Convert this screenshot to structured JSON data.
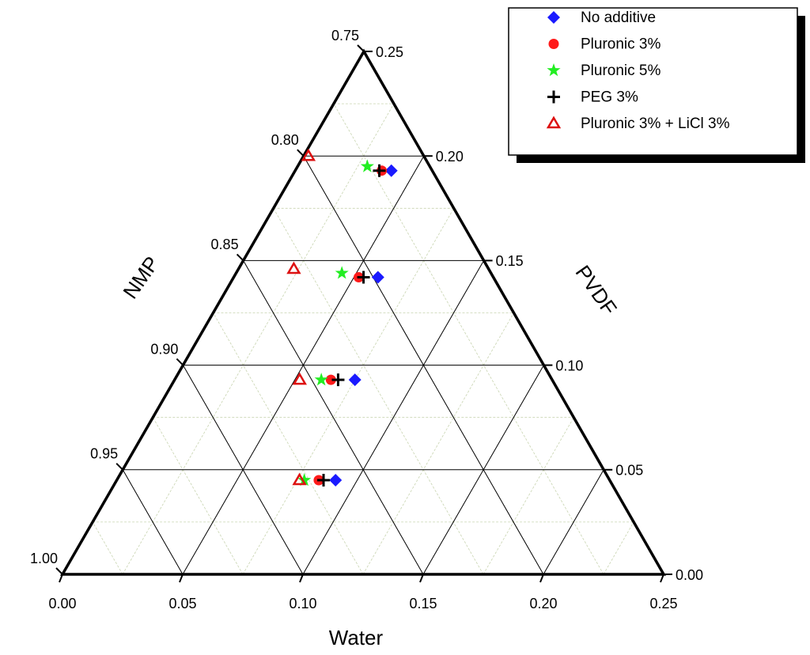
{
  "chart_data": {
    "type": "ternary",
    "axes": {
      "water": {
        "title": "Water",
        "lim": [
          0,
          0.25
        ],
        "ticks": [
          {
            "value": 0,
            "label": "0.00"
          },
          {
            "value": 0.05,
            "label": "0.05"
          },
          {
            "value": 0.1,
            "label": "0.10"
          },
          {
            "value": 0.15,
            "label": "0.15"
          },
          {
            "value": 0.2,
            "label": "0.20"
          },
          {
            "value": 0.25,
            "label": "0.25"
          }
        ]
      },
      "pvdf": {
        "title": "PVDF",
        "lim": [
          0,
          0.25
        ],
        "ticks": [
          {
            "value": 0,
            "label": "0.00"
          },
          {
            "value": 0.05,
            "label": "0.05"
          },
          {
            "value": 0.1,
            "label": "0.10"
          },
          {
            "value": 0.15,
            "label": "0.15"
          },
          {
            "value": 0.2,
            "label": "0.20"
          },
          {
            "value": 0.25,
            "label": "0.25"
          }
        ]
      },
      "nmp": {
        "title": "NMP",
        "lim": [
          0.75,
          1
        ],
        "ticks": [
          {
            "value": 0.75,
            "label": "0.75"
          },
          {
            "value": 0.8,
            "label": "0.80"
          },
          {
            "value": 0.85,
            "label": "0.85"
          },
          {
            "value": 0.9,
            "label": "0.90"
          },
          {
            "value": 0.95,
            "label": "0.95"
          },
          {
            "value": 1,
            "label": "1.00"
          }
        ]
      }
    },
    "grid": true,
    "legend": "upper right",
    "series": [
      {
        "name": "No additive",
        "color": "#1a1aff",
        "marker": "diamond",
        "water": [
          0.091,
          0.075,
          0.06,
          0.04
        ],
        "pvdf": [
          0.045,
          0.093,
          0.142,
          0.193
        ]
      },
      {
        "name": "Pluronic 3%",
        "color": "#ff1a1a",
        "marker": "circle",
        "water": [
          0.084,
          0.065,
          0.052,
          0.036
        ],
        "pvdf": [
          0.045,
          0.093,
          0.142,
          0.193
        ]
      },
      {
        "name": "Pluronic 5%",
        "color": "#22ee22",
        "marker": "star",
        "water": [
          0.078,
          0.061,
          0.044,
          0.029
        ],
        "pvdf": [
          0.045,
          0.093,
          0.144,
          0.195
        ]
      },
      {
        "name": "PEG 3%",
        "color": "#000000",
        "marker": "plus",
        "water": [
          0.086,
          0.068,
          0.054,
          0.035
        ],
        "pvdf": [
          0.045,
          0.093,
          0.142,
          0.193
        ]
      },
      {
        "name": "Pluronic 3% + LiCl 3%",
        "color": "#dd1111",
        "marker": "triangle",
        "water": [
          0.076,
          0.052,
          0.023,
          0.002
        ],
        "pvdf": [
          0.045,
          0.093,
          0.146,
          0.2
        ]
      }
    ]
  }
}
